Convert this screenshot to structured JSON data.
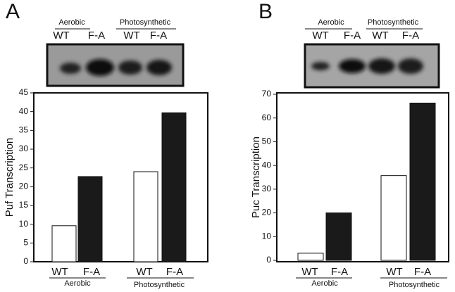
{
  "chart_data": [
    {
      "type": "bar",
      "panel_label": "A",
      "y_label": "Puf Transcription",
      "groups": [
        "Aerobic",
        "Photosynthetic"
      ],
      "categories": [
        "WT",
        "F-A",
        "WT",
        "F-A"
      ],
      "values": [
        9.6,
        22.7,
        24,
        39.7
      ],
      "colors": [
        "#ffffff",
        "#1a1a1a",
        "#ffffff",
        "#1a1a1a"
      ],
      "ylim": [
        0,
        45
      ],
      "yticks": [
        0,
        5,
        10,
        15,
        20,
        25,
        30,
        35,
        40,
        45
      ]
    },
    {
      "type": "bar",
      "panel_label": "B",
      "y_label": "Puc Transcription",
      "groups": [
        "Aerobic",
        "Photosynthetic"
      ],
      "categories": [
        "WT",
        "F-A",
        "WT",
        "F-A"
      ],
      "values": [
        3,
        20,
        35.7,
        66.3
      ],
      "colors": [
        "#ffffff",
        "#1a1a1a",
        "#ffffff",
        "#1a1a1a"
      ],
      "ylim": [
        0,
        70
      ],
      "yticks": [
        0,
        10,
        20,
        30,
        40,
        50,
        60,
        70
      ]
    }
  ]
}
